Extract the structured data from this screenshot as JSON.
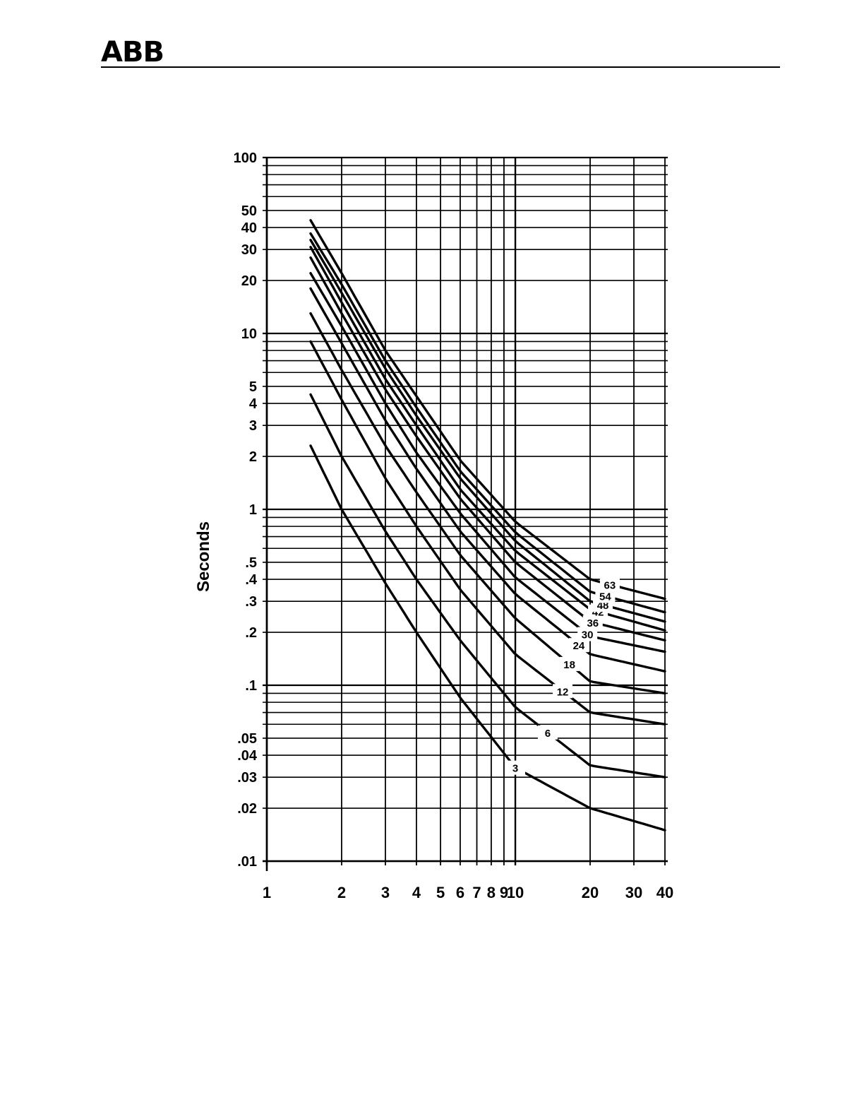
{
  "header": {
    "logo_text": "ABB"
  },
  "chart_data": {
    "type": "line",
    "title": "",
    "xlabel": "",
    "ylabel": "Seconds",
    "xscale": "log",
    "yscale": "log",
    "xlim": [
      1,
      40
    ],
    "ylim": [
      0.01,
      100
    ],
    "grid": true,
    "x_tick_labels": [
      {
        "v": 1,
        "label": "1"
      },
      {
        "v": 2,
        "label": "2"
      },
      {
        "v": 3,
        "label": "3"
      },
      {
        "v": 4,
        "label": "4"
      },
      {
        "v": 5,
        "label": "5"
      },
      {
        "v": 6,
        "label": "6"
      },
      {
        "v": 7,
        "label": "7"
      },
      {
        "v": 8,
        "label": "8"
      },
      {
        "v": 9,
        "label": "9"
      },
      {
        "v": 10,
        "label": "10"
      },
      {
        "v": 20,
        "label": "20"
      },
      {
        "v": 30,
        "label": "30"
      },
      {
        "v": 40,
        "label": "40"
      }
    ],
    "y_tick_labels": [
      {
        "v": 100,
        "label": "100"
      },
      {
        "v": 50,
        "label": "50"
      },
      {
        "v": 40,
        "label": "40"
      },
      {
        "v": 30,
        "label": "30"
      },
      {
        "v": 20,
        "label": "20"
      },
      {
        "v": 10,
        "label": "10"
      },
      {
        "v": 5,
        "label": "5"
      },
      {
        "v": 4,
        "label": "4"
      },
      {
        "v": 3,
        "label": "3"
      },
      {
        "v": 2,
        "label": "2"
      },
      {
        "v": 1,
        "label": "1"
      },
      {
        "v": 0.5,
        "label": ".5"
      },
      {
        "v": 0.4,
        "label": ".4"
      },
      {
        "v": 0.3,
        "label": ".3"
      },
      {
        "v": 0.2,
        "label": ".2"
      },
      {
        "v": 0.1,
        "label": ".1"
      },
      {
        "v": 0.05,
        "label": ".05"
      },
      {
        "v": 0.04,
        "label": ".04"
      },
      {
        "v": 0.03,
        "label": ".03"
      },
      {
        "v": 0.02,
        "label": ".02"
      },
      {
        "v": 0.01,
        "label": ".01"
      }
    ],
    "series": [
      {
        "name": "3",
        "label_x": 10,
        "points": [
          [
            1.5,
            2.3
          ],
          [
            2,
            1.0
          ],
          [
            3,
            0.38
          ],
          [
            4,
            0.2
          ],
          [
            6,
            0.085
          ],
          [
            10,
            0.034
          ],
          [
            20,
            0.02
          ],
          [
            40,
            0.015
          ]
        ]
      },
      {
        "name": "6",
        "label_x": 13.5,
        "points": [
          [
            1.5,
            4.5
          ],
          [
            2,
            2.0
          ],
          [
            3,
            0.75
          ],
          [
            4,
            0.4
          ],
          [
            6,
            0.18
          ],
          [
            10,
            0.075
          ],
          [
            20,
            0.035
          ],
          [
            40,
            0.03
          ]
        ]
      },
      {
        "name": "12",
        "label_x": 15.5,
        "points": [
          [
            1.5,
            9.0
          ],
          [
            2,
            4.2
          ],
          [
            3,
            1.5
          ],
          [
            4,
            0.8
          ],
          [
            6,
            0.35
          ],
          [
            10,
            0.15
          ],
          [
            20,
            0.07
          ],
          [
            40,
            0.06
          ]
        ]
      },
      {
        "name": "18",
        "label_x": 16.5,
        "points": [
          [
            1.5,
            13.0
          ],
          [
            2,
            6.2
          ],
          [
            3,
            2.3
          ],
          [
            4,
            1.25
          ],
          [
            6,
            0.55
          ],
          [
            10,
            0.24
          ],
          [
            20,
            0.105
          ],
          [
            40,
            0.09
          ]
        ]
      },
      {
        "name": "24",
        "label_x": 18,
        "points": [
          [
            1.5,
            18.0
          ],
          [
            2,
            8.8
          ],
          [
            3,
            3.2
          ],
          [
            4,
            1.7
          ],
          [
            6,
            0.75
          ],
          [
            10,
            0.33
          ],
          [
            20,
            0.15
          ],
          [
            40,
            0.12
          ]
        ]
      },
      {
        "name": "30",
        "label_x": 19.5,
        "points": [
          [
            1.5,
            22.0
          ],
          [
            2,
            11.0
          ],
          [
            3,
            4.0
          ],
          [
            4,
            2.1
          ],
          [
            6,
            0.95
          ],
          [
            10,
            0.41
          ],
          [
            20,
            0.19
          ],
          [
            40,
            0.155
          ]
        ]
      },
      {
        "name": "36",
        "label_x": 20.5,
        "points": [
          [
            1.5,
            27.0
          ],
          [
            2,
            13.0
          ],
          [
            3,
            4.8
          ],
          [
            4,
            2.6
          ],
          [
            6,
            1.15
          ],
          [
            10,
            0.5
          ],
          [
            20,
            0.23
          ],
          [
            40,
            0.18
          ]
        ]
      },
      {
        "name": "42",
        "label_x": 21.5,
        "points": [
          [
            1.5,
            31.0
          ],
          [
            2,
            15.0
          ],
          [
            3,
            5.5
          ],
          [
            4,
            3.0
          ],
          [
            6,
            1.3
          ],
          [
            10,
            0.58
          ],
          [
            20,
            0.27
          ],
          [
            40,
            0.205
          ]
        ]
      },
      {
        "name": "48",
        "label_x": 22.5,
        "points": [
          [
            1.5,
            34.0
          ],
          [
            2,
            17.0
          ],
          [
            3,
            6.3
          ],
          [
            4,
            3.4
          ],
          [
            6,
            1.5
          ],
          [
            10,
            0.66
          ],
          [
            20,
            0.3
          ],
          [
            40,
            0.23
          ]
        ]
      },
      {
        "name": "54",
        "label_x": 23,
        "points": [
          [
            1.5,
            37.0
          ],
          [
            2,
            19.0
          ],
          [
            3,
            7.0
          ],
          [
            4,
            3.8
          ],
          [
            6,
            1.65
          ],
          [
            10,
            0.74
          ],
          [
            20,
            0.34
          ],
          [
            40,
            0.26
          ]
        ]
      },
      {
        "name": "63",
        "label_x": 24,
        "points": [
          [
            1.5,
            44.0
          ],
          [
            2,
            22.0
          ],
          [
            3,
            8.0
          ],
          [
            4,
            4.4
          ],
          [
            6,
            1.9
          ],
          [
            10,
            0.85
          ],
          [
            20,
            0.4
          ],
          [
            40,
            0.31
          ]
        ]
      }
    ]
  }
}
